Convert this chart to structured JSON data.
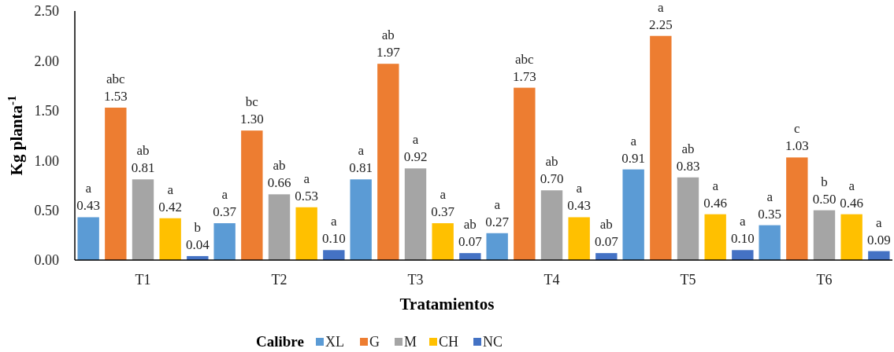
{
  "chart_data": {
    "type": "bar",
    "xlabel": "Tratamientos",
    "ylabel": "Kg planta$^{-1}$",
    "legend_title": "Calibre",
    "legend": "bottom",
    "categories": [
      "T1",
      "T2",
      "T3",
      "T4",
      "T5",
      "T6"
    ],
    "ylim": [
      0,
      2.5
    ],
    "yticks": [
      {
        "value": 0,
        "label": "0.00"
      },
      {
        "value": 0.5,
        "label": "0.50"
      },
      {
        "value": 1,
        "label": "1.00"
      },
      {
        "value": 1.5,
        "label": "1.50"
      },
      {
        "value": 2,
        "label": "2.00"
      },
      {
        "value": 2.5,
        "label": "2.50"
      }
    ],
    "series": [
      {
        "name": "XL",
        "color": "#5b9bd5",
        "values": [
          0.43,
          0.37,
          0.81,
          0.27,
          0.91,
          0.35
        ],
        "value_labels": [
          "a\n0.43",
          "a\n0.37",
          "a\n0.81",
          "a\n0.27",
          "a\n0.91",
          "a\n0.35"
        ]
      },
      {
        "name": "G",
        "color": "#ed7d31",
        "values": [
          1.53,
          1.3,
          1.97,
          1.73,
          2.25,
          1.03
        ],
        "value_labels": [
          "abc\n1.53",
          "bc\n1.30",
          "ab\n1.97",
          "abc\n1.73",
          "a\n2.25",
          "c\n1.03"
        ]
      },
      {
        "name": "M",
        "color": "#a5a5a5",
        "values": [
          0.81,
          0.66,
          0.92,
          0.7,
          0.83,
          0.5
        ],
        "value_labels": [
          "ab\n0.81",
          "ab\n0.66",
          "a\n0.92",
          "ab\n0.70",
          "ab\n0.83",
          "b\n0.50"
        ]
      },
      {
        "name": "CH",
        "color": "#ffc000",
        "values": [
          0.42,
          0.53,
          0.37,
          0.43,
          0.46,
          0.46
        ],
        "value_labels": [
          "a\n0.42",
          "a\n0.53",
          "a\n0.37",
          "a\n0.43",
          "a\n0.46",
          "a\n0.46"
        ]
      },
      {
        "name": "NC",
        "color": "#4472c4",
        "values": [
          0.04,
          0.1,
          0.07,
          0.07,
          0.1,
          0.09
        ],
        "value_labels": [
          "b\n0.04",
          "a\n0.10",
          "ab\n0.07",
          "ab\n0.07",
          "a\n0.10",
          "a\n0.09"
        ]
      }
    ]
  }
}
